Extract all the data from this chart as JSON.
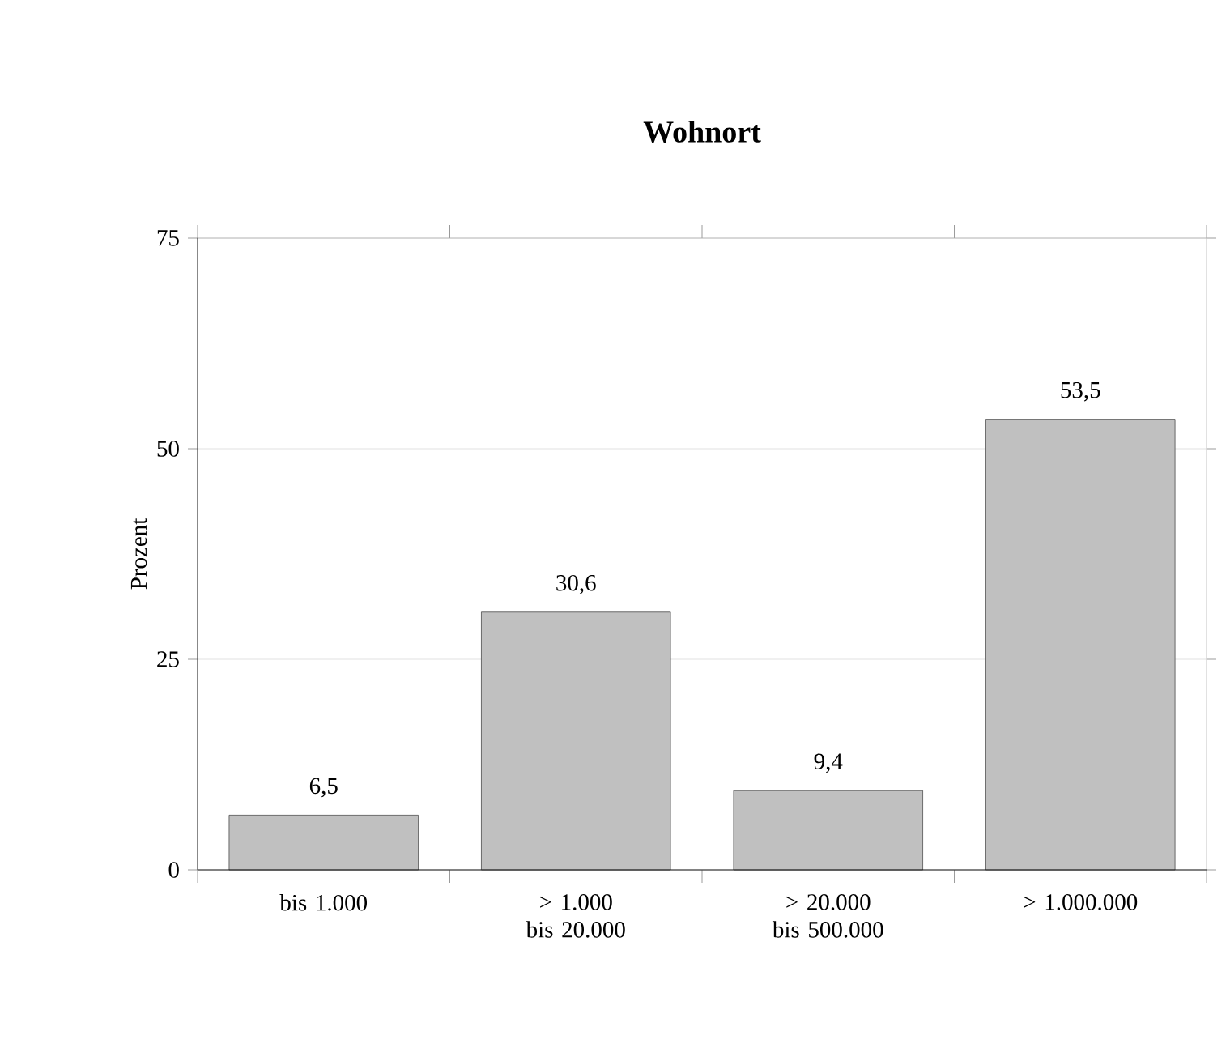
{
  "chart_data": {
    "type": "bar",
    "title": "Wohnort",
    "ylabel": "Prozent",
    "categories": [
      "bis 1.000",
      "> 1.000 bis 20.000",
      "> 20.000 bis 500.000",
      "> 1.000.000"
    ],
    "values": [
      6.5,
      30.6,
      9.4,
      53.5
    ],
    "value_labels": [
      "6,5",
      "30,6",
      "9,4",
      "53,5"
    ],
    "color": "#c0c0c0",
    "ylim": [
      0,
      75
    ],
    "yticks": [
      0,
      25,
      50,
      75
    ],
    "grid": "y"
  }
}
